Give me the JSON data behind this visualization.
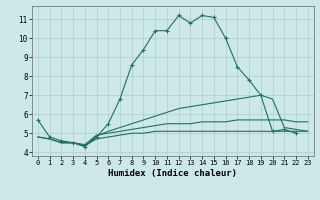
{
  "xlabel": "Humidex (Indice chaleur)",
  "bg_color": "#cce8e8",
  "grid_color": "#b8d8d8",
  "line_color": "#207060",
  "xlim": [
    -0.5,
    23.5
  ],
  "ylim": [
    3.8,
    11.7
  ],
  "xticks": [
    0,
    1,
    2,
    3,
    4,
    5,
    6,
    7,
    8,
    9,
    10,
    11,
    12,
    13,
    14,
    15,
    16,
    17,
    18,
    19,
    20,
    21,
    22,
    23
  ],
  "yticks": [
    4,
    5,
    6,
    7,
    8,
    9,
    10,
    11
  ],
  "series": [
    {
      "x": [
        0,
        1,
        2,
        3,
        4,
        5,
        6,
        7,
        8,
        9,
        10,
        11,
        12,
        13,
        14,
        15,
        16,
        17,
        18,
        19,
        20,
        21,
        22,
        23
      ],
      "y": [
        5.7,
        4.8,
        4.6,
        4.5,
        4.3,
        4.8,
        5.5,
        6.8,
        8.6,
        9.4,
        10.4,
        10.4,
        11.2,
        10.8,
        11.2,
        11.1,
        10.0,
        8.5,
        7.8,
        7.0,
        5.1,
        5.2,
        5.0,
        null
      ],
      "style": "-",
      "marker": "+"
    },
    {
      "x": [
        0,
        1,
        2,
        3,
        4,
        5,
        6,
        7,
        8,
        9,
        10,
        11,
        12,
        13,
        14,
        15,
        16,
        17,
        18,
        19,
        20,
        21,
        22,
        23
      ],
      "y": [
        4.8,
        4.7,
        4.5,
        4.5,
        4.4,
        4.9,
        5.0,
        5.1,
        5.2,
        5.3,
        5.4,
        5.5,
        5.5,
        5.5,
        5.6,
        5.6,
        5.6,
        5.7,
        5.7,
        5.7,
        5.7,
        5.7,
        5.6,
        5.6
      ],
      "style": "-",
      "marker": null
    },
    {
      "x": [
        0,
        1,
        2,
        3,
        4,
        5,
        6,
        7,
        8,
        9,
        10,
        11,
        12,
        13,
        14,
        15,
        16,
        17,
        18,
        19,
        20,
        21,
        22,
        23
      ],
      "y": [
        4.8,
        4.7,
        4.5,
        4.5,
        4.35,
        4.7,
        4.8,
        4.9,
        5.0,
        5.0,
        5.1,
        5.1,
        5.1,
        5.1,
        5.1,
        5.1,
        5.1,
        5.1,
        5.1,
        5.1,
        5.1,
        5.1,
        5.1,
        5.1
      ],
      "style": "-",
      "marker": null
    },
    {
      "x": [
        2,
        3,
        4,
        5,
        6,
        7,
        8,
        9,
        10,
        11,
        12,
        13,
        14,
        15,
        16,
        17,
        18,
        19,
        20,
        21,
        22,
        23
      ],
      "y": [
        4.5,
        4.5,
        4.3,
        4.85,
        5.1,
        5.3,
        5.5,
        5.7,
        5.9,
        6.1,
        6.3,
        6.4,
        6.5,
        6.6,
        6.7,
        6.8,
        6.9,
        7.0,
        6.8,
        5.3,
        5.2,
        5.1
      ],
      "style": "-",
      "marker": null
    }
  ]
}
